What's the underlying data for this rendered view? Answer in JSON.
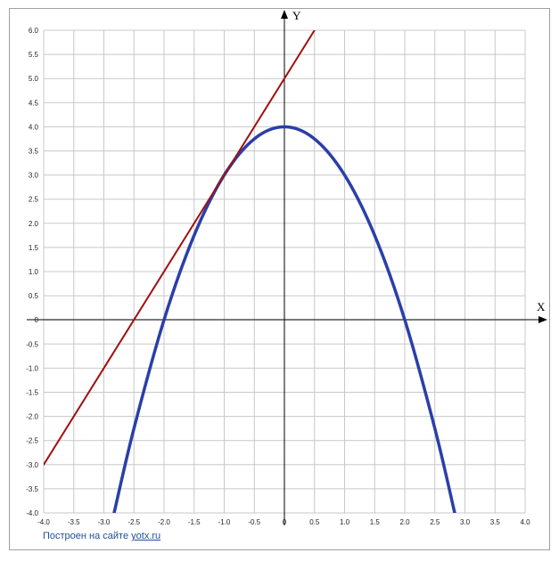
{
  "chart_data": {
    "type": "line",
    "xlabel": "X",
    "ylabel": "Y",
    "xlim": [
      -4.0,
      4.0
    ],
    "ylim": [
      -4.0,
      6.0
    ],
    "grid": true,
    "x_ticks": [
      "-4.0",
      "-3.5",
      "-3.0",
      "-2.5",
      "-2.0",
      "-1.5",
      "-1.0",
      "-0.5",
      "0",
      "0.5",
      "1.0",
      "1.5",
      "2.0",
      "2.5",
      "3.0",
      "3.5",
      "4.0"
    ],
    "y_ticks": [
      "-4.0",
      "-3.5",
      "-3.0",
      "-2.5",
      "-2.0",
      "-1.5",
      "-1.0",
      "-0.5",
      "0",
      "0.5",
      "1.0",
      "1.5",
      "2.0",
      "2.5",
      "3.0",
      "3.5",
      "4.0",
      "4.5",
      "5.0",
      "5.5",
      "6.0"
    ],
    "series": [
      {
        "color": "#2a3fa8",
        "x": [
          -2.83,
          -2.5,
          -2.0,
          -1.5,
          -1.0,
          -0.5,
          0,
          0.5,
          1.0,
          1.5,
          2.0,
          2.5,
          2.83
        ],
        "y": [
          -4.0,
          -2.25,
          0,
          1.75,
          3.0,
          3.75,
          4.0,
          3.75,
          3.0,
          1.75,
          0,
          -2.25,
          -4.0
        ]
      },
      {
        "color": "#a01010",
        "x": [
          -4.0,
          0.5
        ],
        "y": [
          -3.0,
          6.0
        ]
      }
    ]
  },
  "footer": {
    "text": "Построен на сайте ",
    "link": "yotx.ru"
  }
}
